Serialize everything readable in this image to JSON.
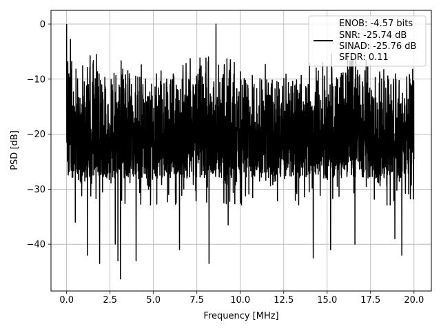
{
  "chart_data": {
    "type": "line",
    "title": "",
    "xlabel": "Frequency [MHz]",
    "ylabel": "PSD [dB]",
    "xlim": [
      -0.9,
      21.0
    ],
    "ylim": [
      -48.5,
      2.5
    ],
    "xticks": [
      0.0,
      2.5,
      5.0,
      7.5,
      10.0,
      12.5,
      15.0,
      17.5,
      20.0
    ],
    "xtick_labels": [
      "0.0",
      "2.5",
      "5.0",
      "7.5",
      "10.0",
      "12.5",
      "15.0",
      "17.5",
      "20.0"
    ],
    "yticks": [
      0,
      -10,
      -20,
      -30,
      -40
    ],
    "ytick_labels": [
      "0",
      "−10",
      "−20",
      "−30",
      "−40"
    ],
    "grid": true,
    "legend_position": "top-right",
    "line_color": "#000000",
    "legend": {
      "entries": [
        "ENOB: -4.57 bits",
        "SNR: -25.74 dB",
        "SINAD: -25.76 dB",
        "SFDR: 0.11"
      ]
    },
    "series": [
      {
        "x": [
          0.0,
          20.0
        ],
        "y_band_typical": [
          -28,
          -6
        ],
        "y_max": 0.0,
        "y_min": -46.3,
        "peaks": [
          {
            "x": 0.0,
            "y": 0.0
          },
          {
            "x": 8.6,
            "y": 0.0
          }
        ],
        "deep_dips": [
          {
            "x": 0.5,
            "y": -36
          },
          {
            "x": 1.2,
            "y": -42
          },
          {
            "x": 1.9,
            "y": -43.5
          },
          {
            "x": 2.8,
            "y": -40
          },
          {
            "x": 2.95,
            "y": -43
          },
          {
            "x": 3.1,
            "y": -46.3
          },
          {
            "x": 4.0,
            "y": -43
          },
          {
            "x": 6.5,
            "y": -41
          },
          {
            "x": 8.2,
            "y": -43.5
          },
          {
            "x": 9.3,
            "y": -36.5
          },
          {
            "x": 14.2,
            "y": -42.5
          },
          {
            "x": 15.2,
            "y": -41
          },
          {
            "x": 16.6,
            "y": -40
          },
          {
            "x": 18.9,
            "y": -39
          },
          {
            "x": 19.3,
            "y": -42
          }
        ]
      }
    ]
  }
}
